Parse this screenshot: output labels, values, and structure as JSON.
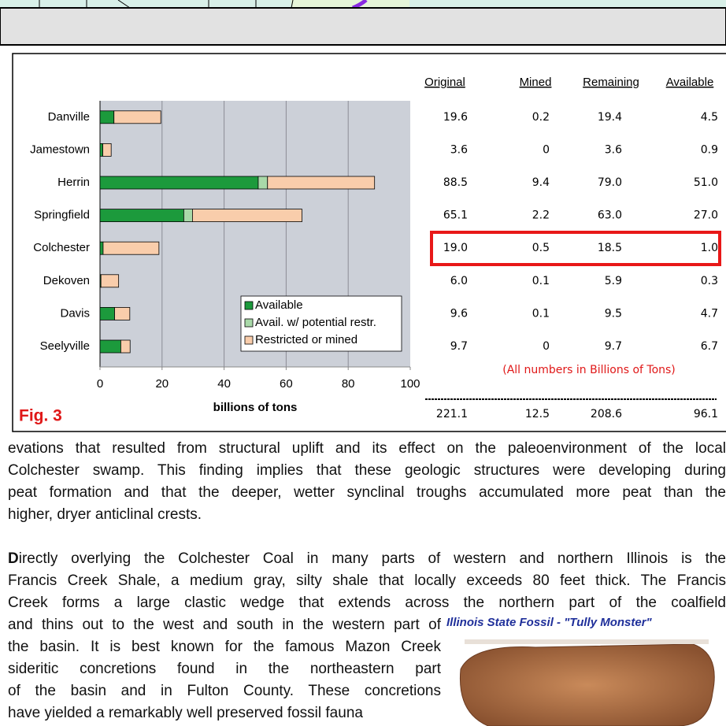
{
  "chart_data": {
    "type": "bar",
    "orientation": "horizontal",
    "stacked": true,
    "categories": [
      "Danville",
      "Jamestown",
      "Herrin",
      "Springfield",
      "Colchester",
      "Dekoven",
      "Davis",
      "Seelyville"
    ],
    "series": [
      {
        "name": "Available",
        "color": "#1c9a3c",
        "values": [
          4.5,
          0.9,
          51.0,
          27.0,
          1.0,
          0.3,
          4.7,
          6.7
        ]
      },
      {
        "name": "Avail. w/ potential restr.",
        "color": "#a9d9a9",
        "values": [
          0,
          0,
          3.0,
          2.8,
          0,
          0,
          0,
          0
        ]
      },
      {
        "name": "Restricted or mined",
        "color": "#f9cdab",
        "values": [
          15.1,
          2.7,
          34.5,
          35.3,
          18.0,
          5.7,
          4.9,
          3.0
        ]
      }
    ],
    "xlim": [
      0,
      100
    ],
    "xticks": [
      0,
      20,
      40,
      60,
      80,
      100
    ],
    "grid": true,
    "x_label": "billions of tons",
    "legend": "lower right"
  },
  "figure_label": "Fig. 3",
  "table": {
    "headers": [
      "Original",
      "Mined",
      "Remaining",
      "Available"
    ],
    "rows": [
      [
        "19.6",
        "0.2",
        "19.4",
        "4.5"
      ],
      [
        "3.6",
        "0",
        "3.6",
        "0.9"
      ],
      [
        "88.5",
        "9.4",
        "79.0",
        "51.0"
      ],
      [
        "65.1",
        "2.2",
        "63.0",
        "27.0"
      ],
      [
        "19.0",
        "0.5",
        "18.5",
        "1.0"
      ],
      [
        "6.0",
        "0.1",
        "5.9",
        "0.3"
      ],
      [
        "9.6",
        "0.1",
        "9.5",
        "4.7"
      ],
      [
        "9.7",
        "0",
        "9.7",
        "6.7"
      ]
    ],
    "note": "(All numbers in Billions of Tons)",
    "totals": [
      "221.1",
      "12.5",
      "208.6",
      "96.1"
    ]
  },
  "paragraphs": [
    {
      "lines": [
        "evations that resulted from structural uplift and its effect on the paleoenvironment of the local",
        "Colchester swamp. This finding implies that these geologic structures were developing during",
        "peat formation and that the deeper, wetter synclinal troughs accumulated more peat than the",
        "higher, dryer anticlinal crests."
      ]
    },
    {
      "lead_letter": "D",
      "lines": [
        "irectly overlying the Colchester Coal in many parts of western and northern Illinois is the",
        "Francis Creek Shale, a medium gray, silty shale that locally exceeds 80 feet thick. The Francis",
        "Creek forms a large clastic wedge that extends across the northern part of the coalfield",
        "and thins out to the west and south in the western part of",
        "the basin. It is best known for the famous Mazon Creek",
        "sideritic concretions found in the northeastern part",
        "of the basin and in Fulton County. These concretions",
        "have yielded a remarkably well preserved fossil fauna"
      ]
    }
  ],
  "fossil_caption": "Illinois State Fossil - \"Tully Monster\""
}
